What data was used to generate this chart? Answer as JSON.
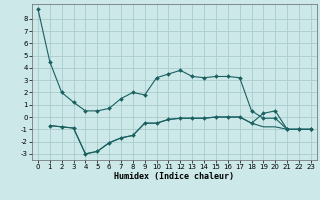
{
  "title": "",
  "xlabel": "Humidex (Indice chaleur)",
  "background_color": "#cce8e8",
  "grid_color": "#aacccc",
  "line_color": "#1a6060",
  "xlim": [
    -0.5,
    23.5
  ],
  "ylim": [
    -3.5,
    9.2
  ],
  "yticks": [
    -3,
    -2,
    -1,
    0,
    1,
    2,
    3,
    4,
    5,
    6,
    7,
    8
  ],
  "xticks": [
    0,
    1,
    2,
    3,
    4,
    5,
    6,
    7,
    8,
    9,
    10,
    11,
    12,
    13,
    14,
    15,
    16,
    17,
    18,
    19,
    20,
    21,
    22,
    23
  ],
  "series0_x": [
    0,
    1,
    2,
    3,
    4,
    5,
    6,
    7,
    8,
    9,
    10,
    11,
    12,
    13,
    14,
    15,
    16,
    17,
    18,
    19,
    20,
    21,
    22,
    23
  ],
  "series0_y": [
    8.8,
    4.5,
    2.0,
    1.2,
    0.5,
    0.5,
    0.7,
    1.5,
    2.0,
    1.8,
    3.2,
    3.5,
    3.8,
    3.3,
    3.2,
    3.3,
    3.3,
    3.2,
    0.5,
    -0.1,
    -0.1,
    -1.0,
    -1.0,
    -1.0
  ],
  "series1_x": [
    1,
    2,
    3,
    4,
    5,
    6,
    7,
    8,
    9,
    10,
    11,
    12,
    13,
    14,
    15,
    16,
    17,
    18,
    19,
    20,
    21,
    22,
    23
  ],
  "series1_y": [
    -0.7,
    -0.8,
    -0.9,
    -3.0,
    -2.8,
    -2.1,
    -1.7,
    -1.5,
    -0.5,
    -0.5,
    -0.2,
    -0.1,
    -0.1,
    -0.1,
    0.0,
    0.0,
    0.0,
    -0.5,
    0.3,
    0.5,
    -1.0,
    -1.0,
    -1.0
  ],
  "series2_x": [
    1,
    2,
    3,
    4,
    5,
    6,
    7,
    8,
    9,
    10,
    11,
    12,
    13,
    14,
    15,
    16,
    17,
    18,
    19,
    20,
    21,
    22,
    23
  ],
  "series2_y": [
    -0.7,
    -0.8,
    -0.9,
    -3.0,
    -2.8,
    -2.1,
    -1.7,
    -1.5,
    -0.5,
    -0.5,
    -0.2,
    -0.1,
    -0.1,
    -0.1,
    0.0,
    0.0,
    0.0,
    -0.5,
    -0.8,
    -0.8,
    -1.0,
    -1.0,
    -1.0
  ],
  "tick_fontsize": 5,
  "xlabel_fontsize": 6,
  "marker_size": 2.0,
  "linewidth": 0.8
}
